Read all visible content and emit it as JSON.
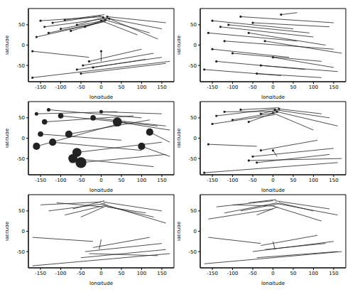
{
  "chart_data": [
    {
      "type": "line",
      "x_label": "longitude",
      "y_label": "latitude",
      "xlim": [
        -180,
        180
      ],
      "ylim": [
        -90,
        90
      ],
      "xticks": [
        -150,
        -100,
        -50,
        0,
        50,
        100,
        150
      ],
      "yticks": [
        -50,
        0,
        50
      ],
      "color": "#222222",
      "marker": "circle",
      "segments": [
        [
          -150,
          60,
          5,
          70
        ],
        [
          -140,
          45,
          10,
          65
        ],
        [
          -120,
          55,
          0,
          72
        ],
        [
          -100,
          40,
          15,
          62
        ],
        [
          -90,
          62,
          8,
          75
        ],
        [
          -75,
          35,
          12,
          60
        ],
        [
          -60,
          50,
          5,
          68
        ],
        [
          -130,
          30,
          10,
          58
        ],
        [
          -40,
          45,
          18,
          66
        ],
        [
          -160,
          20,
          -5,
          55
        ],
        [
          5,
          68,
          150,
          40
        ],
        [
          10,
          62,
          120,
          30
        ],
        [
          15,
          70,
          160,
          55
        ],
        [
          0,
          60,
          90,
          25
        ],
        [
          20,
          65,
          140,
          15
        ],
        [
          -60,
          -60,
          150,
          -30
        ],
        [
          -45,
          -50,
          130,
          -20
        ],
        [
          -50,
          -70,
          160,
          -45
        ],
        [
          -20,
          -55,
          110,
          -35
        ],
        [
          -30,
          -40,
          100,
          -10
        ],
        [
          -170,
          -80,
          170,
          -40
        ],
        [
          -170,
          -15,
          -30,
          -30
        ],
        [
          0,
          -15,
          0,
          -40
        ]
      ]
    },
    {
      "type": "line",
      "x_label": "longitude",
      "y_label": "latitude",
      "xlim": [
        -180,
        180
      ],
      "ylim": [
        -90,
        90
      ],
      "xticks": [
        -150,
        -100,
        -50,
        0,
        50,
        100,
        150
      ],
      "yticks": [
        -50,
        0,
        50
      ],
      "color": "#222222",
      "marker": "circle",
      "segments": [
        [
          -150,
          60,
          50,
          40
        ],
        [
          -130,
          45,
          100,
          20
        ],
        [
          -160,
          30,
          60,
          10
        ],
        [
          -120,
          10,
          150,
          -10
        ],
        [
          -100,
          -20,
          120,
          -40
        ],
        [
          -140,
          -40,
          80,
          -60
        ],
        [
          -80,
          70,
          150,
          55
        ],
        [
          -60,
          30,
          130,
          0
        ],
        [
          -30,
          -50,
          160,
          -65
        ],
        [
          -150,
          -10,
          40,
          -30
        ],
        [
          -50,
          55,
          140,
          45
        ],
        [
          -170,
          -60,
          20,
          -75
        ],
        [
          -20,
          10,
          170,
          -20
        ],
        [
          0,
          -30,
          150,
          -55
        ],
        [
          -110,
          50,
          90,
          30
        ],
        [
          -40,
          -70,
          120,
          -80
        ],
        [
          20,
          75,
          60,
          80
        ]
      ]
    },
    {
      "type": "line",
      "x_label": "longitude",
      "y_label": "latitude",
      "xlim": [
        -180,
        180
      ],
      "ylim": [
        -90,
        90
      ],
      "xticks": [
        -150,
        -100,
        -50,
        0,
        50,
        100,
        150
      ],
      "yticks": [
        -50,
        0,
        50
      ],
      "color": "#222222",
      "marker": "circle",
      "segments": [
        [
          -160,
          -20,
          60,
          40
        ],
        [
          -140,
          40,
          80,
          55
        ],
        [
          -130,
          70,
          100,
          50
        ],
        [
          -100,
          55,
          140,
          30
        ],
        [
          -80,
          10,
          120,
          45
        ],
        [
          -60,
          -35,
          150,
          -10
        ],
        [
          -50,
          -60,
          160,
          -40
        ],
        [
          -160,
          60,
          40,
          65
        ],
        [
          -20,
          50,
          160,
          30
        ],
        [
          -120,
          -10,
          100,
          -30
        ],
        [
          40,
          40,
          170,
          20
        ],
        [
          100,
          -20,
          170,
          -45
        ],
        [
          -70,
          -50,
          130,
          -70
        ],
        [
          0,
          65,
          150,
          60
        ],
        [
          -150,
          10,
          50,
          -5
        ],
        [
          120,
          15,
          170,
          -10
        ]
      ],
      "sizes": [
        3,
        2,
        1,
        2,
        3,
        4,
        5,
        1,
        2,
        3,
        4,
        3,
        4,
        1,
        2,
        3
      ]
    },
    {
      "type": "line",
      "x_label": "longitude",
      "y_label": "latitude",
      "xlim": [
        -180,
        180
      ],
      "ylim": [
        -90,
        90
      ],
      "xticks": [
        -150,
        -100,
        -50,
        0,
        50,
        100,
        150
      ],
      "yticks": [
        -50,
        0,
        50
      ],
      "color": "#222222",
      "marker": "circle",
      "segments": [
        [
          -140,
          55,
          5,
          72
        ],
        [
          -120,
          65,
          10,
          66
        ],
        [
          -100,
          45,
          0,
          62
        ],
        [
          -80,
          70,
          15,
          75
        ],
        [
          -60,
          40,
          8,
          64
        ],
        [
          -30,
          60,
          12,
          70
        ],
        [
          -150,
          35,
          5,
          58
        ],
        [
          5,
          70,
          140,
          50
        ],
        [
          10,
          65,
          160,
          30
        ],
        [
          0,
          62,
          100,
          20
        ],
        [
          15,
          72,
          120,
          60
        ],
        [
          -160,
          -15,
          -40,
          -20
        ],
        [
          -50,
          -45,
          150,
          -25
        ],
        [
          -40,
          -60,
          140,
          -40
        ],
        [
          -30,
          -30,
          110,
          -5
        ],
        [
          -60,
          -55,
          170,
          -50
        ],
        [
          -170,
          -85,
          160,
          -60
        ],
        [
          0,
          -30,
          10,
          -45
        ]
      ]
    },
    {
      "type": "line",
      "x_label": "longitude",
      "y_label": "latitude",
      "xlim": [
        -180,
        180
      ],
      "ylim": [
        -90,
        90
      ],
      "xticks": [
        -150,
        -100,
        -50,
        0,
        50,
        100,
        150
      ],
      "yticks": [
        -50,
        0,
        50
      ],
      "color": "#222222",
      "marker": "none",
      "segments": [
        [
          -150,
          65,
          0,
          72
        ],
        [
          -130,
          50,
          10,
          68
        ],
        [
          -110,
          70,
          5,
          60
        ],
        [
          -90,
          40,
          15,
          65
        ],
        [
          -70,
          55,
          8,
          75
        ],
        [
          -50,
          35,
          12,
          62
        ],
        [
          5,
          72,
          150,
          50
        ],
        [
          10,
          62,
          130,
          35
        ],
        [
          0,
          68,
          160,
          20
        ],
        [
          15,
          60,
          110,
          45
        ],
        [
          -170,
          -15,
          -20,
          -25
        ],
        [
          -40,
          -50,
          150,
          -30
        ],
        [
          -50,
          -65,
          160,
          -45
        ],
        [
          -20,
          -40,
          120,
          -15
        ],
        [
          -30,
          -55,
          140,
          -60
        ],
        [
          -170,
          -85,
          170,
          -55
        ],
        [
          0,
          -20,
          -5,
          -45
        ]
      ]
    },
    {
      "type": "line",
      "x_label": "longitude",
      "y_label": "latitude",
      "xlim": [
        -180,
        180
      ],
      "ylim": [
        -90,
        90
      ],
      "xticks": [
        -150,
        -100,
        -50,
        0,
        50,
        100,
        150
      ],
      "yticks": [
        -50,
        0,
        50
      ],
      "color": "#222222",
      "marker": "none",
      "segments": [
        [
          -140,
          60,
          0,
          75
        ],
        [
          -120,
          45,
          10,
          70
        ],
        [
          -100,
          65,
          5,
          62
        ],
        [
          -80,
          50,
          15,
          68
        ],
        [
          -60,
          70,
          8,
          78
        ],
        [
          -40,
          40,
          12,
          60
        ],
        [
          -160,
          30,
          0,
          55
        ],
        [
          5,
          75,
          140,
          55
        ],
        [
          10,
          68,
          160,
          40
        ],
        [
          0,
          62,
          120,
          25
        ],
        [
          15,
          70,
          100,
          50
        ],
        [
          -160,
          -15,
          -30,
          -30
        ],
        [
          -50,
          -50,
          150,
          -25
        ],
        [
          -40,
          -65,
          160,
          -50
        ],
        [
          -20,
          -45,
          130,
          -30
        ],
        [
          -30,
          -35,
          110,
          -10
        ],
        [
          -170,
          -80,
          170,
          -50
        ],
        [
          0,
          -25,
          5,
          -45
        ]
      ]
    }
  ]
}
